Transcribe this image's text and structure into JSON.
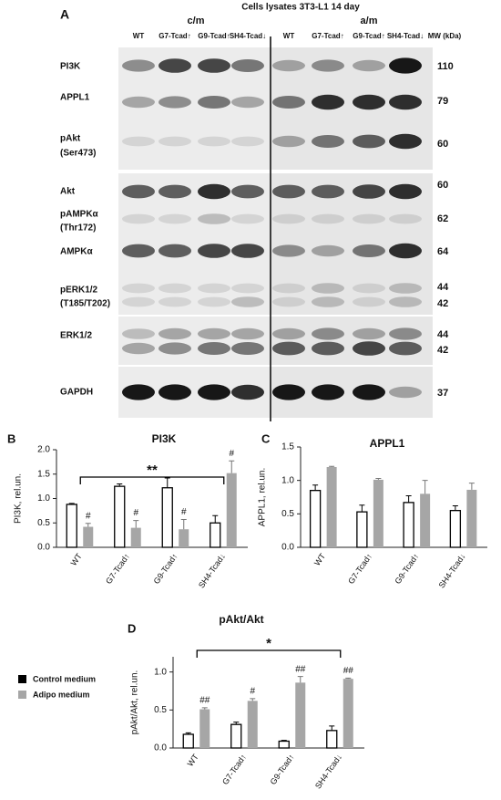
{
  "panels": [
    "A",
    "B",
    "C",
    "D"
  ],
  "blot": {
    "title": "Cells lysates 3T3-L1 14 day",
    "conditions": [
      "c/m",
      "a/m"
    ],
    "lanes": [
      "WT",
      "G7-Tcad↑",
      "G9-Tcad↑",
      "SH4-Tcad↓",
      "WT",
      "G7-Tcad↑",
      "G9-Tcad↑",
      "SH4-Tcad↓"
    ],
    "mw_header": "MW (kDa)",
    "rows": [
      {
        "label": [
          "PI3K"
        ],
        "mw": [
          "110"
        ]
      },
      {
        "label": [
          "APPL1"
        ],
        "mw": [
          "79"
        ]
      },
      {
        "label": [
          "pAkt",
          "(Ser473)"
        ],
        "mw": [
          "60"
        ]
      },
      {
        "label": [
          "Akt"
        ],
        "mw": [
          "60"
        ]
      },
      {
        "label": [
          "pAMPKα",
          "(Thr172)"
        ],
        "mw": [
          "62"
        ]
      },
      {
        "label": [
          "AMPKα"
        ],
        "mw": [
          "64"
        ]
      },
      {
        "label": [
          "pERK1/2",
          "(T185/T202)"
        ],
        "mw": [
          "44",
          "42"
        ]
      },
      {
        "label": [
          "ERK1/2"
        ],
        "mw": [
          "44",
          "42"
        ]
      },
      {
        "label": [
          "GAPDH"
        ],
        "mw": [
          "37"
        ]
      }
    ]
  },
  "legend": [
    {
      "name": "Control medium",
      "color": "#000000"
    },
    {
      "name": "Adipo medium",
      "color": "#a6a6a6"
    }
  ],
  "chart_data": [
    {
      "type": "bar",
      "title": "PI3K",
      "ylabel": "PI3K, rel.un.",
      "categories": [
        "WT",
        "G7-Tcad↑",
        "G9-Tcad↑",
        "SH4-Tcad↓"
      ],
      "ylim": [
        0,
        2
      ],
      "yticks": [
        {
          "value": 0,
          "label": "0.0"
        },
        0.5,
        {
          "value": 1,
          "label": "1.0"
        },
        1.5,
        {
          "value": 2,
          "label": "2.0"
        }
      ],
      "series": [
        {
          "values": [
            0.88,
            1.25,
            1.22,
            0.5
          ],
          "errors": [
            0.02,
            0.05,
            0.2,
            0.15
          ]
        },
        {
          "values": [
            0.42,
            0.4,
            0.37,
            1.52
          ],
          "errors": [
            0.07,
            0.15,
            0.2,
            0.25
          ],
          "annotations": [
            "#",
            "#",
            "#",
            "#"
          ]
        }
      ],
      "bracket": "**"
    },
    {
      "type": "bar",
      "title": "APPL1",
      "ylabel": "APPL1, rel.un.",
      "categories": [
        "WT",
        "G7-Tcad↑",
        "G9-Tcad↑",
        "SH4-Tcad↓"
      ],
      "ylim": [
        0,
        1.5
      ],
      "yticks": [
        {
          "value": 0,
          "label": "0.0"
        },
        0.5,
        {
          "value": 1,
          "label": "1.0"
        },
        1.5
      ],
      "series": [
        {
          "values": [
            0.85,
            0.53,
            0.67,
            0.55
          ],
          "errors": [
            0.08,
            0.1,
            0.1,
            0.07
          ]
        },
        {
          "values": [
            1.2,
            1.01,
            0.8,
            0.86
          ],
          "errors": [
            0.01,
            0.02,
            0.2,
            0.1
          ]
        }
      ]
    },
    {
      "type": "bar",
      "title": "pAkt/Akt",
      "ylabel": "pAkt/Akt, rel.un.",
      "categories": [
        "WT",
        "G7-Tcad↑",
        "G9-Tcad↑",
        "SH4-Tcad↓"
      ],
      "ylim": [
        0,
        1.2
      ],
      "yticks": [
        {
          "value": 0,
          "label": "0.0"
        },
        0.5,
        {
          "value": 1,
          "label": "1.0"
        }
      ],
      "series": [
        {
          "values": [
            0.18,
            0.31,
            0.09,
            0.23
          ],
          "errors": [
            0.02,
            0.03,
            0.01,
            0.06
          ]
        },
        {
          "values": [
            0.51,
            0.62,
            0.86,
            0.91
          ],
          "errors": [
            0.02,
            0.03,
            0.08,
            0.01
          ],
          "annotations": [
            "##",
            "#",
            "##",
            "##"
          ]
        }
      ],
      "bracket": "*"
    }
  ]
}
